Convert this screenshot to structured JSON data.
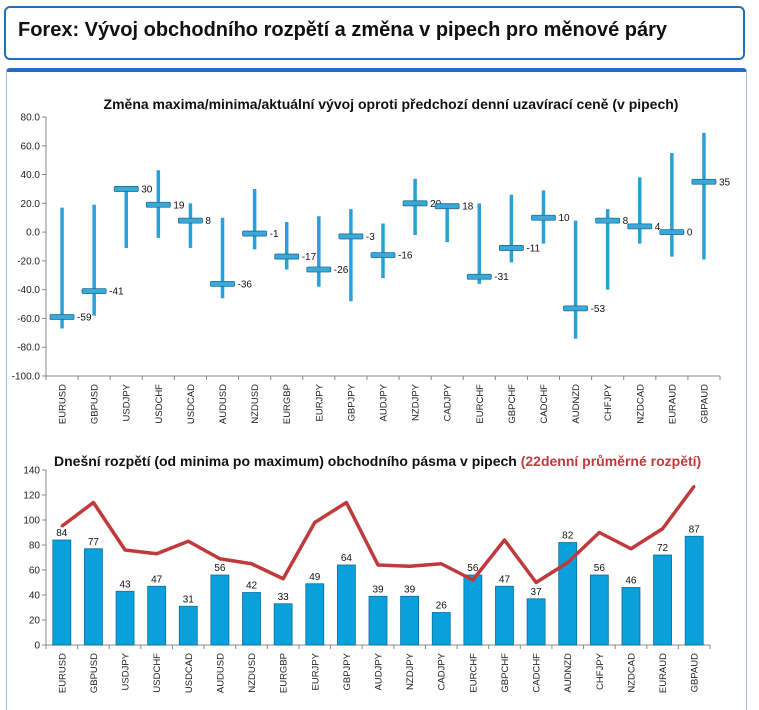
{
  "page_title": "Forex: Vývoj obchodního rozpětí a změna v pipech pro měnové páry",
  "chart_data": [
    {
      "type": "range",
      "title": "Změna maxima/minima/aktuální vývoj oproti předchozí denní uzavírací ceně (v pipech)",
      "categories": [
        "EURUSD",
        "GBPUSD",
        "USDJPY",
        "USDCHF",
        "USDCAD",
        "AUDUSD",
        "NZDUSD",
        "EURGBP",
        "EURJPY",
        "GBPJPY",
        "AUDJPY",
        "NZDJPY",
        "CADJPY",
        "EURCHF",
        "GBPCHF",
        "CADCHF",
        "AUDNZD",
        "CHFJPY",
        "NZDCAD",
        "EURAUD",
        "GBPAUD"
      ],
      "high": [
        17,
        19,
        31,
        43,
        20,
        10,
        30,
        7,
        11,
        16,
        6,
        37,
        19,
        20,
        26,
        29,
        8,
        16,
        38,
        55,
        69
      ],
      "low": [
        -67,
        -58,
        -11,
        -4,
        -11,
        -46,
        -12,
        -26,
        -38,
        -48,
        -32,
        -2,
        -7,
        -36,
        -21,
        -8,
        -74,
        -40,
        -8,
        -17,
        -19
      ],
      "current": [
        -59,
        -41,
        30,
        19,
        8,
        -36,
        -1,
        -17,
        -26,
        -3,
        -16,
        20,
        18,
        -31,
        -11,
        10,
        -53,
        8,
        4,
        0,
        35
      ],
      "current_labels": [
        "-59",
        "-41",
        "30",
        "19",
        "8",
        "-36",
        "-1",
        "-17",
        "-26",
        "-3",
        "-16",
        "20",
        "18",
        "-31",
        "-11",
        "10",
        "-53",
        "8",
        "4",
        "0",
        "35"
      ],
      "ylim": [
        -100,
        80
      ],
      "yticks": [
        80,
        60,
        40,
        20,
        0,
        -20,
        -40,
        -60,
        -80,
        -100
      ],
      "ytick_labels": [
        "80.0",
        "60.0",
        "40.0",
        "20.0",
        "0.0",
        "-20.0",
        "-40.0",
        "-60.0",
        "-80.0",
        "-100.0"
      ],
      "colors": {
        "range_line": "#2aa0d8",
        "marker": "#3aa8d8",
        "marker_edge": "#1f6f95"
      }
    },
    {
      "type": "bar+line",
      "title": "Dnešní rozpětí (od minima po maximum) obchodního pásma v pipech",
      "title_highlight": "(22denní průměrné rozpětí)",
      "categories": [
        "EURUSD",
        "GBPUSD",
        "USDJPY",
        "USDCHF",
        "USDCAD",
        "AUDUSD",
        "NZDUSD",
        "EURGBP",
        "EURJPY",
        "GBPJPY",
        "AUDJPY",
        "NZDJPY",
        "CADJPY",
        "EURCHF",
        "GBPCHF",
        "CADCHF",
        "AUDNZD",
        "CHFJPY",
        "NZDCAD",
        "EURAUD",
        "GBPAUD"
      ],
      "series": [
        {
          "name": "Dnešní rozpětí",
          "type": "bar",
          "values": [
            84,
            77,
            43,
            47,
            31,
            56,
            42,
            33,
            49,
            64,
            39,
            39,
            26,
            56,
            47,
            37,
            82,
            56,
            46,
            72,
            87
          ]
        },
        {
          "name": "22denní průměrné rozpětí",
          "type": "line",
          "values": [
            95,
            114,
            76,
            73,
            83,
            69,
            65,
            53,
            98,
            114,
            64,
            63,
            65,
            52,
            84,
            50,
            66,
            90,
            77,
            93,
            127
          ]
        }
      ],
      "ylim": [
        0,
        140
      ],
      "yticks": [
        0,
        20,
        40,
        60,
        80,
        100,
        120,
        140
      ],
      "ytick_labels": [
        "0",
        "20",
        "40",
        "60",
        "80",
        "100",
        "120",
        "140"
      ],
      "colors": {
        "bar": "#0aa0dc",
        "bar_edge": "#0a6f9e",
        "line": "#c0393b",
        "highlight_title": "#c0393b"
      }
    }
  ]
}
